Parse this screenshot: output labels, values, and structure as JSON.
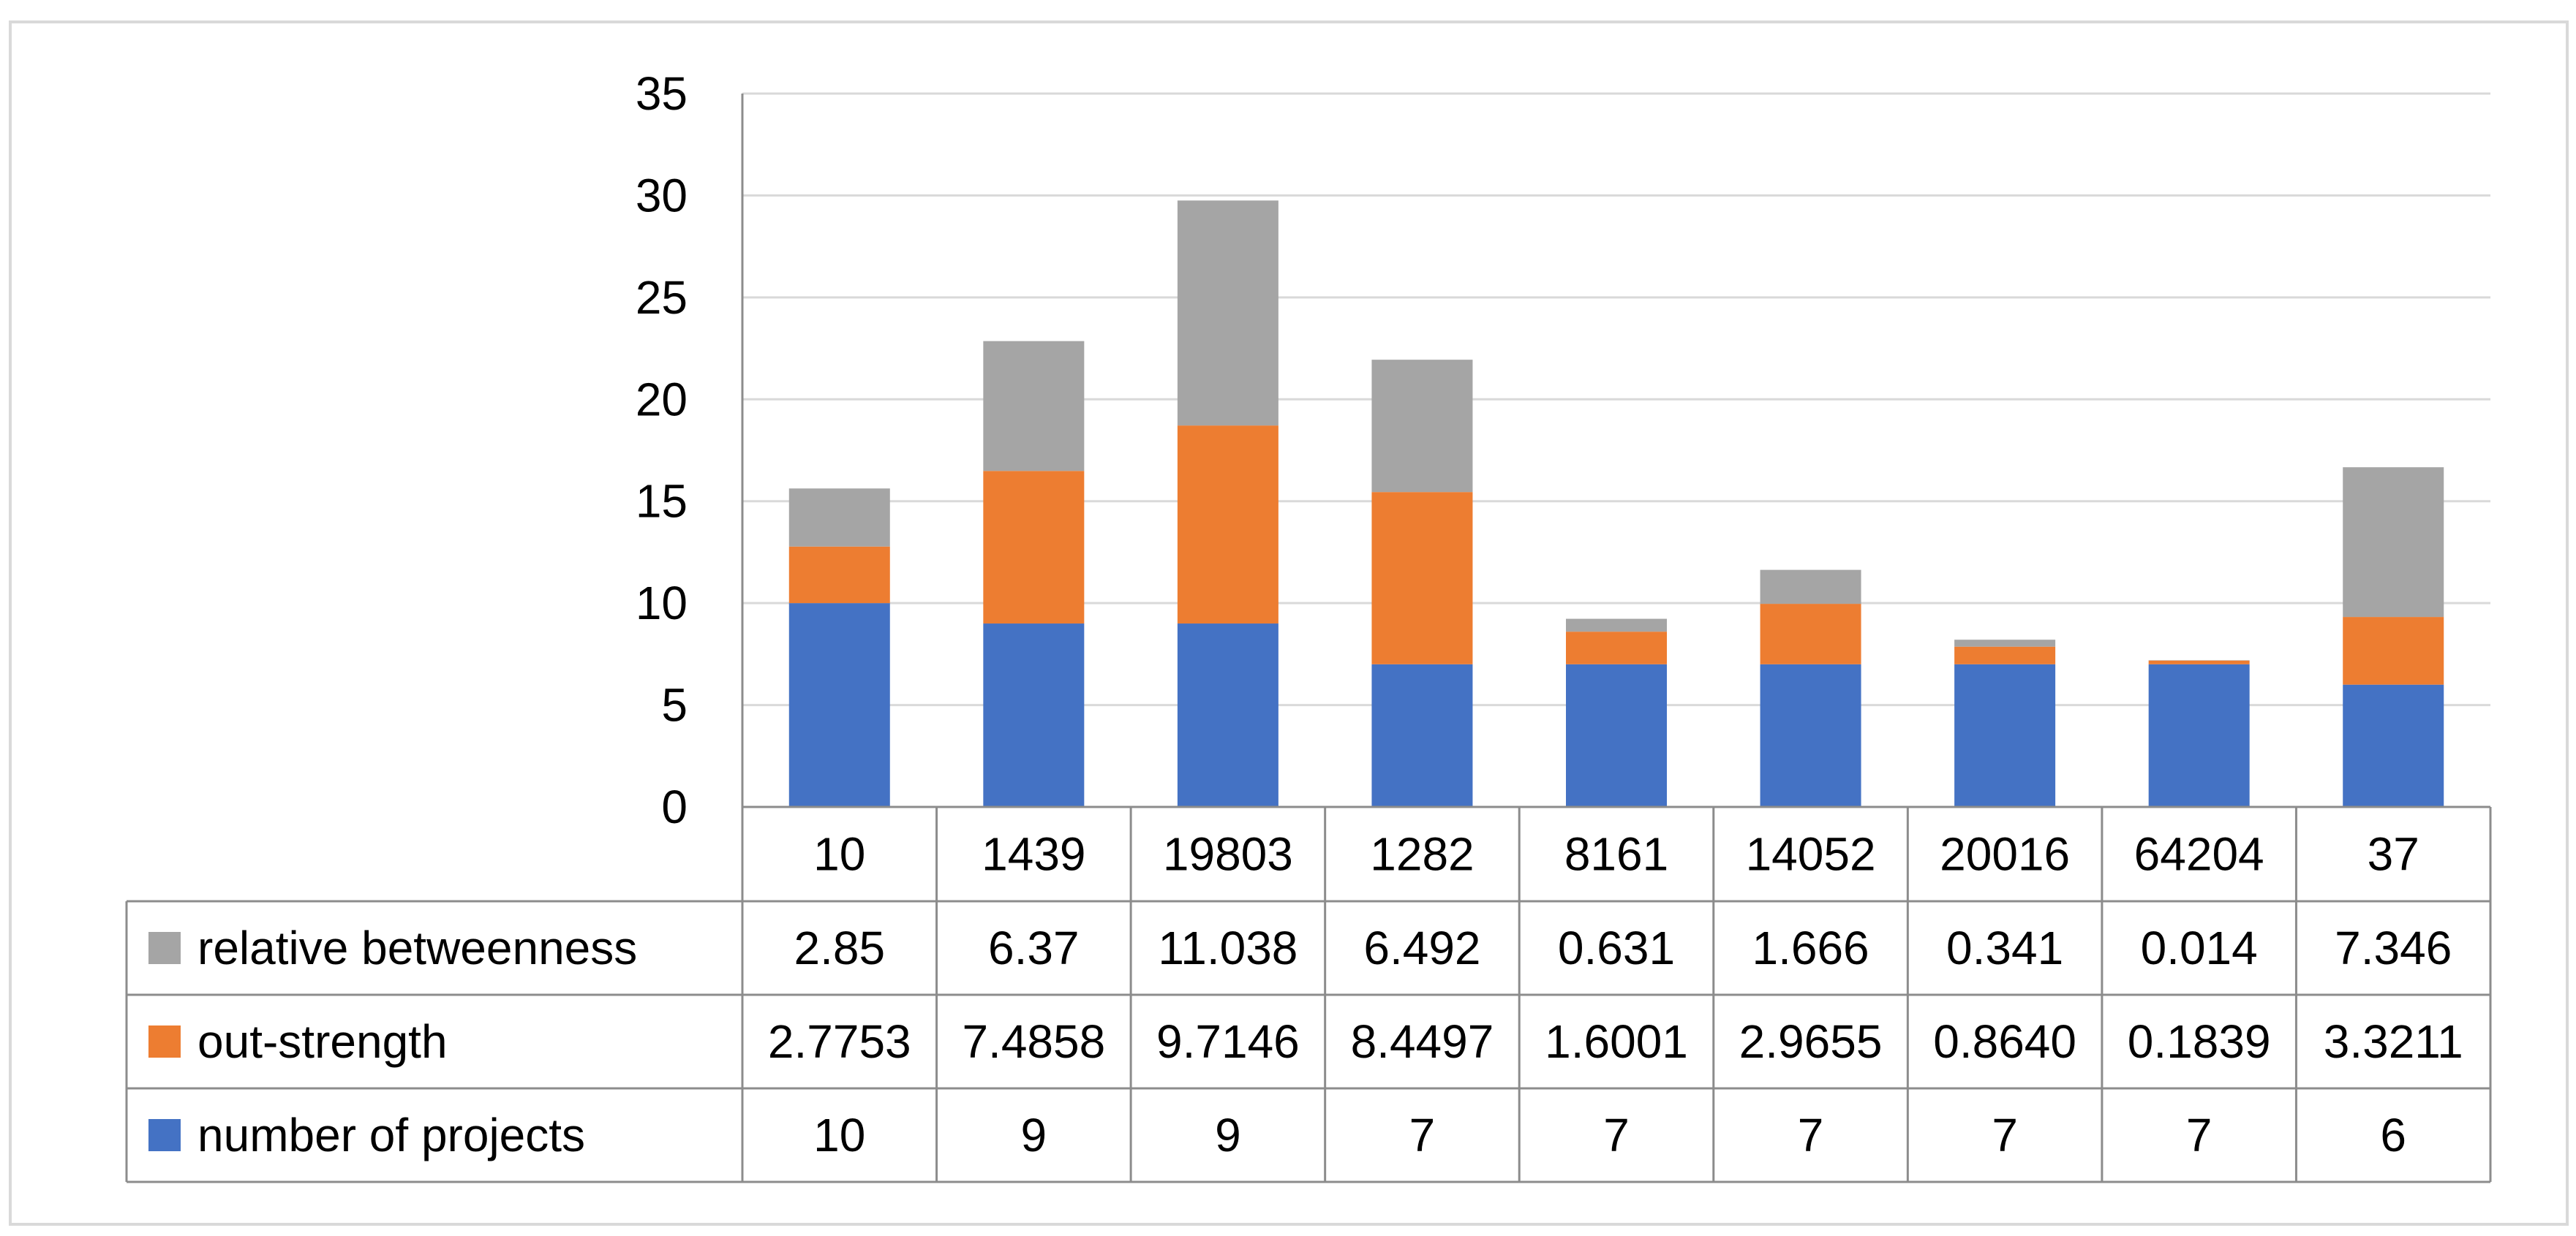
{
  "chart_data": {
    "type": "bar",
    "stacked": true,
    "title": "",
    "xlabel": "",
    "ylabel": "",
    "ylim": [
      0,
      35
    ],
    "yticks": [
      0,
      5,
      10,
      15,
      20,
      25,
      30,
      35
    ],
    "grid": true,
    "legend_placement": "data-table-left",
    "categories": [
      "10",
      "1439",
      "19803",
      "1282",
      "8161",
      "14052",
      "20016",
      "64204",
      "37"
    ],
    "series": [
      {
        "name": "number of projects",
        "color": "#4472C4",
        "values": [
          10,
          9,
          9,
          7,
          7,
          7,
          7,
          7,
          6
        ],
        "labels": [
          "10",
          "9",
          "9",
          "7",
          "7",
          "7",
          "7",
          "7",
          "6"
        ]
      },
      {
        "name": "out-strength",
        "color": "#ED7D31",
        "values": [
          2.7753,
          7.4858,
          9.7146,
          8.4497,
          1.6001,
          2.9655,
          0.864,
          0.1839,
          3.3211
        ],
        "labels": [
          "2.7753",
          "7.4858",
          "9.7146",
          "8.4497",
          "1.6001",
          "2.9655",
          "0.8640",
          "0.1839",
          "3.3211"
        ]
      },
      {
        "name": "relative betweenness",
        "color": "#A5A5A5",
        "values": [
          2.85,
          6.37,
          11.038,
          6.492,
          0.631,
          1.666,
          0.341,
          0.014,
          7.346
        ],
        "labels": [
          "2.85",
          "6.37",
          "11.038",
          "6.492",
          "0.631",
          "1.666",
          "0.341",
          "0.014",
          "7.346"
        ]
      }
    ],
    "table_row_order": [
      "relative betweenness",
      "out-strength",
      "number of projects"
    ]
  }
}
